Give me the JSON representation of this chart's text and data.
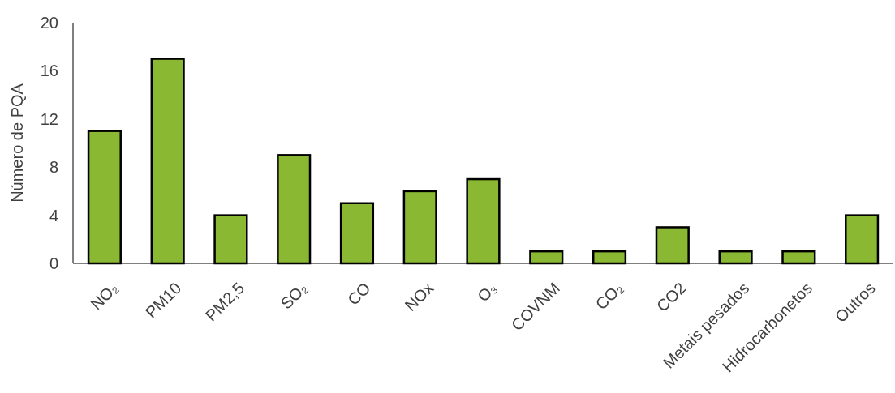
{
  "chart_data": {
    "type": "bar",
    "ylabel": "Número de PQA",
    "categories": [
      "NO₂",
      "PM10",
      "PM2,5",
      "SO₂",
      "CO",
      "NOx",
      "O₃",
      "COVNM",
      "CO₂",
      "CO2",
      "Metais pesados",
      "Hidrocarbonetos",
      "Outros"
    ],
    "values": [
      11,
      17,
      4,
      9,
      5,
      6,
      7,
      1,
      1,
      3,
      1,
      1,
      4
    ],
    "color": "#8ab833",
    "ylim": [
      0,
      20
    ],
    "yticks": [
      0,
      4,
      8,
      12,
      16,
      20
    ],
    "grid": false
  }
}
